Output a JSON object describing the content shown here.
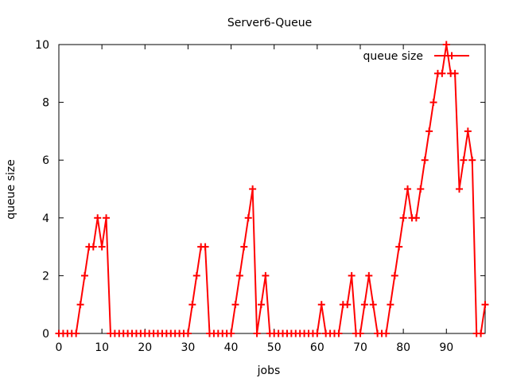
{
  "chart_data": {
    "type": "line",
    "title": "Server6-Queue",
    "xlabel": "jobs",
    "ylabel": "queue size",
    "xlim": [
      0,
      99
    ],
    "ylim": [
      0,
      10
    ],
    "xticks": [
      0,
      10,
      20,
      30,
      40,
      50,
      60,
      70,
      80,
      90
    ],
    "yticks": [
      0,
      2,
      4,
      6,
      8,
      10
    ],
    "grid": false,
    "legend_position": "top-right",
    "color": "#ff0000",
    "marker": "plus",
    "series": [
      {
        "name": "queue size",
        "x": [
          0,
          1,
          2,
          3,
          4,
          5,
          6,
          7,
          8,
          9,
          10,
          11,
          12,
          13,
          14,
          15,
          16,
          17,
          18,
          19,
          20,
          21,
          22,
          23,
          24,
          25,
          26,
          27,
          28,
          29,
          30,
          31,
          32,
          33,
          34,
          35,
          36,
          37,
          38,
          39,
          40,
          41,
          42,
          43,
          44,
          45,
          46,
          47,
          48,
          49,
          50,
          51,
          52,
          53,
          54,
          55,
          56,
          57,
          58,
          59,
          60,
          61,
          62,
          63,
          64,
          65,
          66,
          67,
          68,
          69,
          70,
          71,
          72,
          73,
          74,
          75,
          76,
          77,
          78,
          79,
          80,
          81,
          82,
          83,
          84,
          85,
          86,
          87,
          88,
          89,
          90,
          91,
          92,
          93,
          94,
          95,
          96,
          97,
          98,
          99
        ],
        "y": [
          0,
          0,
          0,
          0,
          0,
          1,
          2,
          3,
          3,
          4,
          3,
          4,
          0,
          0,
          0,
          0,
          0,
          0,
          0,
          0,
          0,
          0,
          0,
          0,
          0,
          0,
          0,
          0,
          0,
          0,
          0,
          1,
          2,
          3,
          3,
          0,
          0,
          0,
          0,
          0,
          0,
          1,
          2,
          3,
          4,
          5,
          0,
          1,
          2,
          0,
          0,
          0,
          0,
          0,
          0,
          0,
          0,
          0,
          0,
          0,
          0,
          1,
          0,
          0,
          0,
          0,
          1,
          1,
          2,
          0,
          0,
          1,
          2,
          1,
          0,
          0,
          0,
          1,
          2,
          3,
          4,
          5,
          4,
          4,
          5,
          6,
          7,
          8,
          9,
          9,
          10,
          9,
          9,
          5,
          6,
          7,
          6,
          0,
          0,
          1
        ]
      }
    ]
  }
}
